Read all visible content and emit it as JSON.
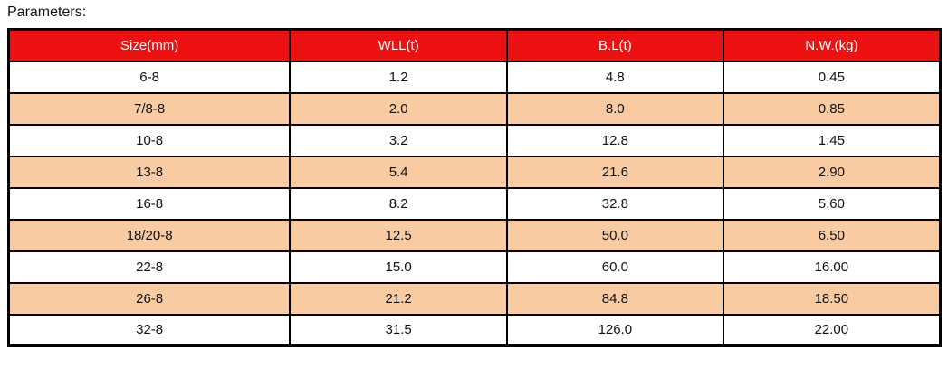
{
  "page": {
    "title": "Parameters:"
  },
  "table": {
    "headers": [
      "Size(mm)",
      "WLL(t)",
      "B.L(t)",
      "N.W.(kg)"
    ],
    "rows": [
      [
        "6-8",
        "1.2",
        "4.8",
        "0.45"
      ],
      [
        "7/8-8",
        "2.0",
        "8.0",
        "0.85"
      ],
      [
        "10-8",
        "3.2",
        "12.8",
        "1.45"
      ],
      [
        "13-8",
        "5.4",
        "21.6",
        "2.90"
      ],
      [
        "16-8",
        "8.2",
        "32.8",
        "5.60"
      ],
      [
        "18/20-8",
        "12.5",
        "50.0",
        "6.50"
      ],
      [
        "22-8",
        "15.0",
        "60.0",
        "16.00"
      ],
      [
        "26-8",
        "21.2",
        "84.8",
        "18.50"
      ],
      [
        "32-8",
        "31.5",
        "126.0",
        "22.00"
      ]
    ],
    "colors": {
      "header_bg": "#ee1111",
      "header_text": "#ffffff",
      "alt_row_bg": "#f8cba2",
      "border": "#000000"
    }
  }
}
